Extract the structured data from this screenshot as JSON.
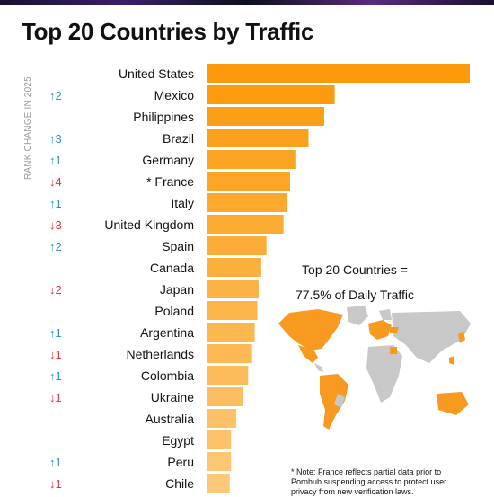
{
  "header": {
    "title": "Top 20 Countries by Traffic",
    "side_label": "RANK CHANGE IN 2025"
  },
  "callout": {
    "line1": "Top 20 Countries =",
    "line2": "77.5% of Daily Traffic"
  },
  "footnote": "* Note: France reflects partial data prior to Pornhub suspending access to protect user privacy from new verification laws.",
  "colors": {
    "bar_dark": "#fb9a0a",
    "bar_light": "#fdc878",
    "rank_up": "#2b8fd6",
    "rank_down": "#e5333d",
    "map_gray": "#c8c8c8",
    "map_orange": "#f79a1f"
  },
  "chart_data": {
    "type": "bar",
    "orientation": "horizontal",
    "title": "Top 20 Countries by Traffic",
    "categories": [
      "United States",
      "Mexico",
      "Philippines",
      "Brazil",
      "Germany",
      "* France",
      "Italy",
      "United Kingdom",
      "Spain",
      "Canada",
      "Japan",
      "Poland",
      "Argentina",
      "Netherlands",
      "Colombia",
      "Ukraine",
      "Australia",
      "Egypt",
      "Peru",
      "Chile"
    ],
    "values": [
      100,
      48.5,
      44.5,
      38.5,
      33.5,
      31.5,
      30.5,
      29,
      22.5,
      20.5,
      19.5,
      19,
      18,
      17,
      15.5,
      13.5,
      11,
      9,
      9,
      8.5
    ],
    "rank_change": [
      "",
      "↑2",
      "",
      "↑3",
      "↑1",
      "↓4",
      "↑1",
      "↓3",
      "↑2",
      "",
      "↓2",
      "",
      "↑1",
      "↓1",
      "↑1",
      "↓1",
      "",
      "",
      "↑1",
      "↓1"
    ],
    "xlim": [
      0,
      100
    ],
    "grid": false
  }
}
